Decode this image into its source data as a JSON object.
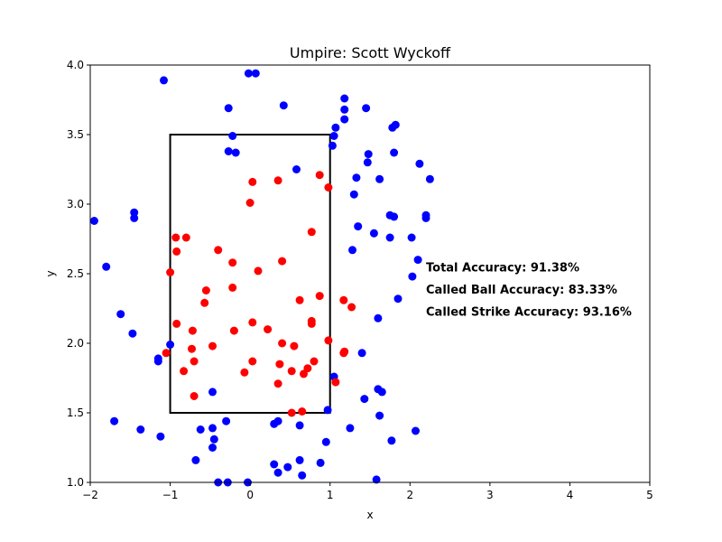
{
  "chart_data": {
    "type": "scatter",
    "title": "Umpire: Scott Wyckoff",
    "xlabel": "x",
    "ylabel": "y",
    "xlim": [
      -2,
      5
    ],
    "ylim": [
      1.0,
      4.0
    ],
    "xticks": [
      "−2",
      "−1",
      "0",
      "1",
      "2",
      "3",
      "4",
      "5"
    ],
    "xtick_values": [
      -2,
      -1,
      0,
      1,
      2,
      3,
      4,
      5
    ],
    "yticks": [
      "1.0",
      "1.5",
      "2.0",
      "2.5",
      "3.0",
      "3.5",
      "4.0"
    ],
    "ytick_values": [
      1.0,
      1.5,
      2.0,
      2.5,
      3.0,
      3.5,
      4.0
    ],
    "grid": false,
    "strike_zone": {
      "x": [
        -1,
        1
      ],
      "y": [
        1.5,
        3.5
      ],
      "color": "#000000"
    },
    "annotations": [
      {
        "text": "Total Accuracy: 91.38%",
        "x": 2.2,
        "y": 2.55
      },
      {
        "text": "Called Ball Accuracy: 83.33%",
        "x": 2.2,
        "y": 2.39
      },
      {
        "text": "Called Strike Accuracy: 93.16%",
        "x": 2.2,
        "y": 2.23
      }
    ],
    "series": [
      {
        "color": "#0000ff",
        "points": [
          [
            -1.95,
            2.88
          ],
          [
            -1.8,
            2.55
          ],
          [
            -1.62,
            2.21
          ],
          [
            -1.47,
            2.07
          ],
          [
            -1.45,
            2.94
          ],
          [
            -1.45,
            2.9
          ],
          [
            -1.7,
            1.44
          ],
          [
            -1.37,
            1.38
          ],
          [
            -1.15,
            1.87
          ],
          [
            -1.15,
            1.89
          ],
          [
            -1.12,
            1.33
          ],
          [
            -1.08,
            3.89
          ],
          [
            -1.0,
            1.99
          ],
          [
            -0.68,
            1.16
          ],
          [
            -0.62,
            1.38
          ],
          [
            -0.47,
            1.39
          ],
          [
            -0.47,
            1.65
          ],
          [
            -0.45,
            1.31
          ],
          [
            -0.47,
            1.25
          ],
          [
            -0.4,
            1.0
          ],
          [
            -0.28,
            1.0
          ],
          [
            -0.3,
            1.44
          ],
          [
            -0.27,
            3.38
          ],
          [
            -0.27,
            3.69
          ],
          [
            -0.22,
            3.49
          ],
          [
            -0.18,
            3.37
          ],
          [
            -0.02,
            3.94
          ],
          [
            0.07,
            3.94
          ],
          [
            -0.03,
            1.0
          ],
          [
            0.3,
            1.13
          ],
          [
            0.35,
            1.44
          ],
          [
            0.3,
            1.42
          ],
          [
            0.35,
            1.07
          ],
          [
            0.47,
            1.11
          ],
          [
            0.42,
            3.71
          ],
          [
            0.58,
            3.25
          ],
          [
            0.62,
            1.41
          ],
          [
            0.62,
            1.16
          ],
          [
            0.65,
            1.05
          ],
          [
            0.88,
            1.14
          ],
          [
            0.95,
            1.29
          ],
          [
            0.97,
            1.52
          ],
          [
            1.03,
            3.42
          ],
          [
            1.05,
            3.49
          ],
          [
            1.07,
            3.55
          ],
          [
            1.05,
            1.76
          ],
          [
            1.18,
            3.76
          ],
          [
            1.18,
            3.68
          ],
          [
            1.18,
            3.61
          ],
          [
            1.25,
            1.39
          ],
          [
            1.28,
            2.67
          ],
          [
            1.3,
            3.07
          ],
          [
            1.33,
            3.19
          ],
          [
            1.35,
            2.84
          ],
          [
            1.4,
            1.93
          ],
          [
            1.43,
            1.6
          ],
          [
            1.45,
            3.69
          ],
          [
            1.47,
            3.3
          ],
          [
            1.48,
            3.36
          ],
          [
            1.55,
            2.79
          ],
          [
            1.58,
            1.02
          ],
          [
            1.6,
            1.67
          ],
          [
            1.6,
            2.18
          ],
          [
            1.62,
            3.18
          ],
          [
            1.62,
            1.48
          ],
          [
            1.65,
            1.65
          ],
          [
            1.75,
            2.92
          ],
          [
            1.75,
            2.76
          ],
          [
            1.77,
            1.3
          ],
          [
            1.78,
            3.55
          ],
          [
            1.8,
            3.37
          ],
          [
            1.8,
            2.91
          ],
          [
            1.82,
            3.57
          ],
          [
            1.85,
            2.32
          ],
          [
            2.02,
            2.76
          ],
          [
            2.03,
            2.48
          ],
          [
            2.07,
            1.37
          ],
          [
            2.1,
            2.6
          ],
          [
            2.12,
            3.29
          ],
          [
            2.2,
            2.92
          ],
          [
            2.2,
            2.9
          ],
          [
            2.25,
            3.18
          ]
        ]
      },
      {
        "color": "#ff0000",
        "points": [
          [
            -1.05,
            1.93
          ],
          [
            -1.0,
            2.51
          ],
          [
            -0.93,
            2.76
          ],
          [
            -0.92,
            2.66
          ],
          [
            -0.92,
            2.14
          ],
          [
            -0.83,
            1.8
          ],
          [
            -0.8,
            2.76
          ],
          [
            -0.73,
            1.96
          ],
          [
            -0.72,
            2.09
          ],
          [
            -0.7,
            1.87
          ],
          [
            -0.7,
            1.62
          ],
          [
            -0.57,
            2.29
          ],
          [
            -0.55,
            2.38
          ],
          [
            -0.47,
            1.98
          ],
          [
            -0.4,
            2.67
          ],
          [
            -0.22,
            2.58
          ],
          [
            -0.22,
            2.4
          ],
          [
            -0.2,
            2.09
          ],
          [
            -0.07,
            1.79
          ],
          [
            0.0,
            3.01
          ],
          [
            0.03,
            3.16
          ],
          [
            0.03,
            2.15
          ],
          [
            0.03,
            1.87
          ],
          [
            0.1,
            2.52
          ],
          [
            0.22,
            2.1
          ],
          [
            0.35,
            3.17
          ],
          [
            0.35,
            1.71
          ],
          [
            0.37,
            1.85
          ],
          [
            0.4,
            2.0
          ],
          [
            0.4,
            2.59
          ],
          [
            0.52,
            1.8
          ],
          [
            0.52,
            1.5
          ],
          [
            0.55,
            1.98
          ],
          [
            0.62,
            2.31
          ],
          [
            0.65,
            1.51
          ],
          [
            0.67,
            1.78
          ],
          [
            0.72,
            1.82
          ],
          [
            0.77,
            2.8
          ],
          [
            0.77,
            2.16
          ],
          [
            0.77,
            2.14
          ],
          [
            0.8,
            1.87
          ],
          [
            0.87,
            3.21
          ],
          [
            0.87,
            2.34
          ],
          [
            0.98,
            3.12
          ],
          [
            0.98,
            2.02
          ],
          [
            1.07,
            1.72
          ],
          [
            1.17,
            2.31
          ],
          [
            1.17,
            1.93
          ],
          [
            1.18,
            1.94
          ],
          [
            1.27,
            2.26
          ]
        ]
      }
    ]
  }
}
